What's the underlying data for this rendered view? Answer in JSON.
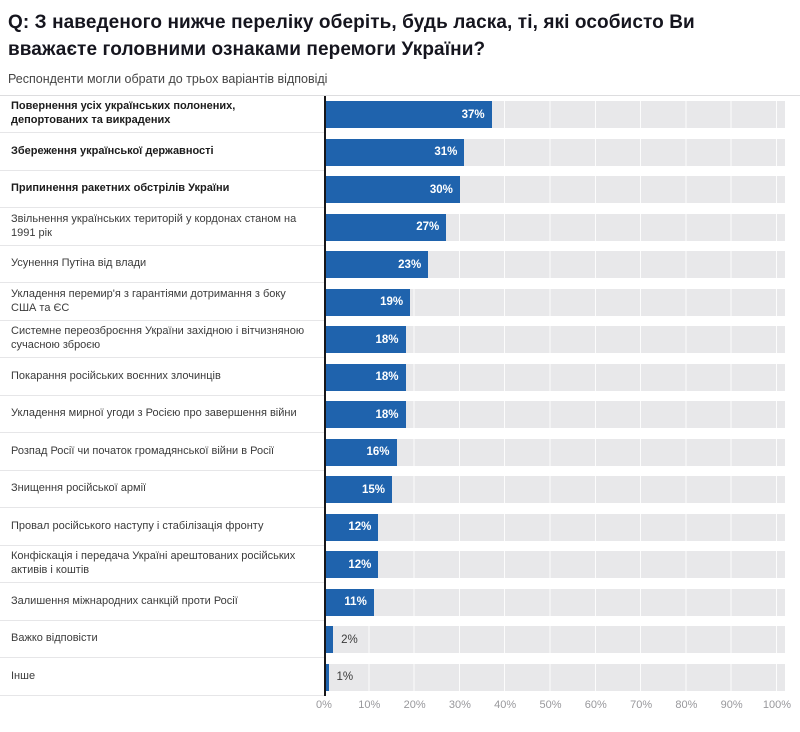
{
  "header": {
    "title": "Q: З наведеного нижче переліку оберіть, будь ласка, ті, які особисто Ви вважаєте головними ознаками перемоги України?",
    "subtitle": "Респонденти могли обрати до трьох варіантів відповіді"
  },
  "colors": {
    "bar": "#1f63ad",
    "plot_background": "#e8e8ea",
    "gridline": "#ffffff",
    "axis_line": "#17171a",
    "tick_label": "#98989c",
    "value_label_inside": "#ffffff",
    "value_label_outside": "#3a3a3a"
  },
  "chart_data": {
    "type": "bar",
    "orientation": "horizontal",
    "unit": "%",
    "xlim": [
      0,
      100
    ],
    "grid": true,
    "x_ticks": [
      "0%",
      "10%",
      "20%",
      "30%",
      "40%",
      "50%",
      "60%",
      "70%",
      "80%",
      "90%",
      "100%"
    ],
    "categories": [
      "Повернення усіх українських полонених, депортованих та викрадених",
      "Збереження української державності",
      "Припинення ракетних обстрілів України",
      "Звільнення українських територій у кордонах станом на 1991 рік",
      "Усунення Путіна від влади",
      "Укладення перемир'я з гарантіями дотримання з боку США та ЄС",
      "Системне переозброєння України західною і вітчизняною сучасною зброєю",
      "Покарання російських воєнних злочинців",
      "Укладення мирної угоди з Росією про завершення війни",
      "Розпад Росії чи початок громадянської війни в Росії",
      "Знищення російської армії",
      "Провал російського наступу і стабілізація фронту",
      "Конфіскація і передача Україні арештованих російських активів і коштів",
      "Залишення міжнародних санкцій проти Росії",
      "Важко відповісти",
      "Інше"
    ],
    "values": [
      37,
      31,
      30,
      27,
      23,
      19,
      18,
      18,
      18,
      16,
      15,
      12,
      12,
      11,
      2,
      1
    ],
    "value_labels": [
      "37%",
      "31%",
      "30%",
      "27%",
      "23%",
      "19%",
      "18%",
      "18%",
      "18%",
      "16%",
      "15%",
      "12%",
      "12%",
      "11%",
      "2%",
      "1%"
    ],
    "bold_categories": [
      true,
      true,
      true,
      false,
      false,
      false,
      false,
      false,
      false,
      false,
      false,
      false,
      false,
      false,
      false,
      false
    ]
  }
}
